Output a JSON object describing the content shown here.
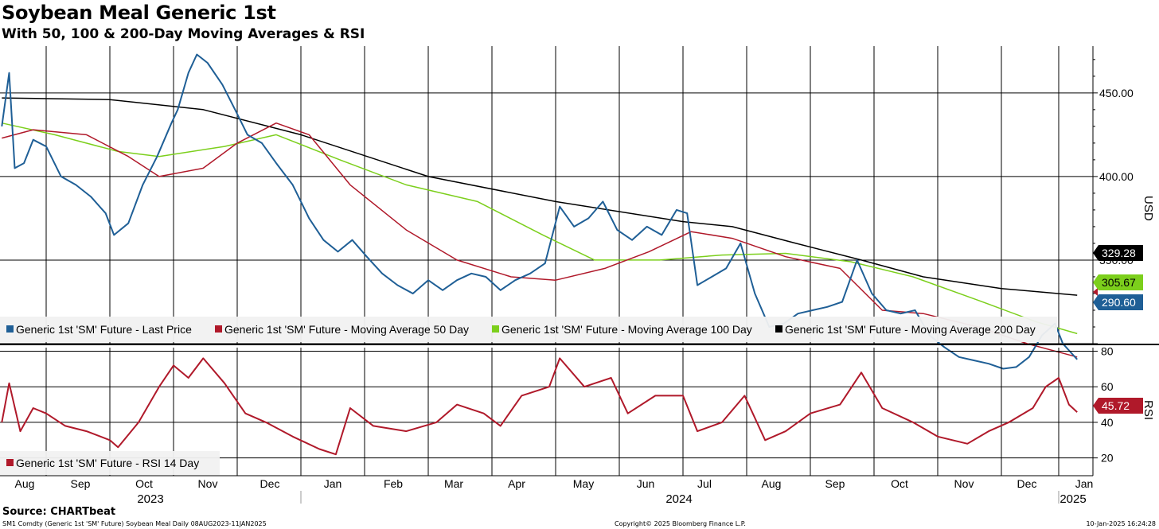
{
  "title": "Soybean Meal Generic 1st",
  "subtitle": "With 50, 100 & 200-Day Moving Averages & RSI",
  "source": "Source: CHARTbeat",
  "footer": {
    "left": "SM1 Comdty (Generic 1st 'SM' Future) Soybean Meal  Daily 08AUG2023-11JAN2025",
    "center": "Copyright© 2025 Bloomberg Finance L.P.",
    "right": "10-Jan-2025 16:24:28"
  },
  "colors": {
    "price": "#1f5f96",
    "ma50": "#b0192a",
    "ma100": "#7ccf1c",
    "ma200": "#000000",
    "rsi": "#b0192a",
    "grid": "#000000"
  },
  "chart_data": [
    {
      "type": "line",
      "ylabel": "USD",
      "ylim": [
        300,
        478
      ],
      "yticks": [
        "450.00",
        "400.00",
        "350.00"
      ],
      "x_months": [
        "Aug",
        "Sep",
        "Oct",
        "Nov",
        "Dec",
        "Jan",
        "Feb",
        "Mar",
        "Apr",
        "May",
        "Jun",
        "Jul",
        "Aug",
        "Sep",
        "Oct",
        "Nov",
        "Dec",
        "Jan"
      ],
      "x_years": [
        "2023",
        "2024",
        "2025"
      ],
      "legend_position": "bottom",
      "series": [
        {
          "name": "Generic 1st 'SM' Future - Last Price",
          "last_value": "290.60",
          "points": [
            [
              "2023-08-08",
              430
            ],
            [
              "2023-08-12",
              462
            ],
            [
              "2023-08-15",
              405
            ],
            [
              "2023-08-20",
              408
            ],
            [
              "2023-08-25",
              422
            ],
            [
              "2023-09-01",
              418
            ],
            [
              "2023-09-08",
              400
            ],
            [
              "2023-09-15",
              395
            ],
            [
              "2023-09-22",
              388
            ],
            [
              "2023-09-29",
              378
            ],
            [
              "2023-10-03",
              365
            ],
            [
              "2023-10-10",
              372
            ],
            [
              "2023-10-17",
              395
            ],
            [
              "2023-10-24",
              412
            ],
            [
              "2023-10-31",
              432
            ],
            [
              "2023-11-03",
              440
            ],
            [
              "2023-11-08",
              462
            ],
            [
              "2023-11-12",
              473
            ],
            [
              "2023-11-17",
              468
            ],
            [
              "2023-11-24",
              455
            ],
            [
              "2023-11-30",
              440
            ],
            [
              "2023-12-06",
              425
            ],
            [
              "2023-12-13",
              420
            ],
            [
              "2023-12-20",
              408
            ],
            [
              "2023-12-28",
              395
            ],
            [
              "2024-01-05",
              375
            ],
            [
              "2024-01-12",
              362
            ],
            [
              "2024-01-19",
              355
            ],
            [
              "2024-01-26",
              362
            ],
            [
              "2024-02-02",
              352
            ],
            [
              "2024-02-09",
              342
            ],
            [
              "2024-02-16",
              335
            ],
            [
              "2024-02-23",
              330
            ],
            [
              "2024-03-01",
              338
            ],
            [
              "2024-03-08",
              332
            ],
            [
              "2024-03-15",
              338
            ],
            [
              "2024-03-22",
              342
            ],
            [
              "2024-03-29",
              340
            ],
            [
              "2024-04-05",
              332
            ],
            [
              "2024-04-12",
              338
            ],
            [
              "2024-04-19",
              342
            ],
            [
              "2024-04-26",
              348
            ],
            [
              "2024-05-03",
              382
            ],
            [
              "2024-05-10",
              370
            ],
            [
              "2024-05-17",
              375
            ],
            [
              "2024-05-24",
              385
            ],
            [
              "2024-05-31",
              368
            ],
            [
              "2024-06-07",
              362
            ],
            [
              "2024-06-14",
              370
            ],
            [
              "2024-06-21",
              365
            ],
            [
              "2024-06-28",
              380
            ],
            [
              "2024-07-03",
              378
            ],
            [
              "2024-07-08",
              335
            ],
            [
              "2024-07-15",
              340
            ],
            [
              "2024-07-22",
              345
            ],
            [
              "2024-07-29",
              360
            ],
            [
              "2024-08-05",
              330
            ],
            [
              "2024-08-12",
              310
            ],
            [
              "2024-08-19",
              312
            ],
            [
              "2024-08-26",
              318
            ],
            [
              "2024-09-02",
              320
            ],
            [
              "2024-09-09",
              322
            ],
            [
              "2024-09-16",
              325
            ],
            [
              "2024-09-23",
              350
            ],
            [
              "2024-09-30",
              330
            ],
            [
              "2024-10-07",
              320
            ],
            [
              "2024-10-14",
              318
            ],
            [
              "2024-10-21",
              320
            ],
            [
              "2024-10-28",
              305
            ],
            [
              "2024-11-04",
              298
            ],
            [
              "2024-11-11",
              292
            ],
            [
              "2024-11-18",
              290
            ],
            [
              "2024-11-25",
              288
            ],
            [
              "2024-12-02",
              285
            ],
            [
              "2024-12-09",
              286
            ],
            [
              "2024-12-16",
              292
            ],
            [
              "2024-12-23",
              305
            ],
            [
              "2024-12-30",
              312
            ],
            [
              "2025-01-03",
              300
            ],
            [
              "2025-01-10",
              290.6
            ]
          ]
        },
        {
          "name": "Generic 1st 'SM' Future - Moving Average 50 Day",
          "last_value": "",
          "points": [
            [
              "2023-08-08",
              423
            ],
            [
              "2023-08-25",
              428
            ],
            [
              "2023-09-20",
              425
            ],
            [
              "2023-10-10",
              412
            ],
            [
              "2023-10-25",
              400
            ],
            [
              "2023-11-15",
              405
            ],
            [
              "2023-12-01",
              420
            ],
            [
              "2023-12-20",
              432
            ],
            [
              "2024-01-05",
              425
            ],
            [
              "2024-01-25",
              395
            ],
            [
              "2024-02-20",
              368
            ],
            [
              "2024-03-15",
              350
            ],
            [
              "2024-04-10",
              340
            ],
            [
              "2024-05-01",
              338
            ],
            [
              "2024-05-25",
              345
            ],
            [
              "2024-06-15",
              355
            ],
            [
              "2024-07-05",
              367
            ],
            [
              "2024-07-25",
              363
            ],
            [
              "2024-08-20",
              352
            ],
            [
              "2024-09-15",
              345
            ],
            [
              "2024-10-05",
              320
            ],
            [
              "2024-10-25",
              318
            ],
            [
              "2024-11-20",
              310
            ],
            [
              "2024-12-15",
              300
            ],
            [
              "2025-01-10",
              292
            ]
          ]
        },
        {
          "name": "Generic 1st 'SM' Future - Moving Average 100 Day",
          "last_value": "305.67",
          "points": [
            [
              "2023-08-08",
              432
            ],
            [
              "2023-09-05",
              425
            ],
            [
              "2023-10-05",
              415
            ],
            [
              "2023-10-25",
              412
            ],
            [
              "2023-11-25",
              418
            ],
            [
              "2023-12-20",
              425
            ],
            [
              "2024-01-20",
              410
            ],
            [
              "2024-02-20",
              395
            ],
            [
              "2024-03-25",
              385
            ],
            [
              "2024-04-25",
              365
            ],
            [
              "2024-05-20",
              350
            ],
            [
              "2024-06-20",
              350
            ],
            [
              "2024-07-20",
              353
            ],
            [
              "2024-08-20",
              354
            ],
            [
              "2024-09-20",
              349
            ],
            [
              "2024-10-20",
              340
            ],
            [
              "2024-11-20",
              326
            ],
            [
              "2024-12-20",
              313
            ],
            [
              "2025-01-10",
              306
            ]
          ]
        },
        {
          "name": "Generic 1st 'SM' Future - Moving Average 200 Day",
          "last_value": "329.28",
          "points": [
            [
              "2023-08-08",
              447
            ],
            [
              "2023-10-01",
              446
            ],
            [
              "2023-11-15",
              440
            ],
            [
              "2024-01-01",
              425
            ],
            [
              "2024-03-01",
              400
            ],
            [
              "2024-05-01",
              385
            ],
            [
              "2024-07-01",
              373
            ],
            [
              "2024-07-25",
              370
            ],
            [
              "2024-08-25",
              360
            ],
            [
              "2024-09-25",
              350
            ],
            [
              "2024-10-25",
              340
            ],
            [
              "2024-12-01",
              333
            ],
            [
              "2025-01-10",
              329
            ]
          ]
        }
      ]
    },
    {
      "type": "line",
      "ylabel": "RSI",
      "ylim": [
        10,
        82
      ],
      "yticks": [
        "80",
        "60",
        "40",
        "20"
      ],
      "legend_position": "bottom-left",
      "series": [
        {
          "name": "Generic 1st 'SM' Future - RSI 14 Day",
          "last_value": "45.72",
          "points": [
            [
              "2023-08-08",
              40
            ],
            [
              "2023-08-12",
              62
            ],
            [
              "2023-08-18",
              35
            ],
            [
              "2023-08-25",
              48
            ],
            [
              "2023-09-01",
              45
            ],
            [
              "2023-09-10",
              38
            ],
            [
              "2023-09-20",
              35
            ],
            [
              "2023-10-01",
              30
            ],
            [
              "2023-10-05",
              26
            ],
            [
              "2023-10-15",
              40
            ],
            [
              "2023-10-25",
              60
            ],
            [
              "2023-11-01",
              72
            ],
            [
              "2023-11-08",
              65
            ],
            [
              "2023-11-15",
              76
            ],
            [
              "2023-11-25",
              62
            ],
            [
              "2023-12-05",
              45
            ],
            [
              "2023-12-15",
              40
            ],
            [
              "2023-12-28",
              32
            ],
            [
              "2024-01-10",
              25
            ],
            [
              "2024-01-18",
              22
            ],
            [
              "2024-01-25",
              48
            ],
            [
              "2024-02-05",
              38
            ],
            [
              "2024-02-20",
              35
            ],
            [
              "2024-03-05",
              40
            ],
            [
              "2024-03-15",
              50
            ],
            [
              "2024-03-28",
              45
            ],
            [
              "2024-04-05",
              38
            ],
            [
              "2024-04-15",
              55
            ],
            [
              "2024-04-28",
              60
            ],
            [
              "2024-05-03",
              76
            ],
            [
              "2024-05-15",
              60
            ],
            [
              "2024-05-28",
              65
            ],
            [
              "2024-06-05",
              45
            ],
            [
              "2024-06-18",
              55
            ],
            [
              "2024-07-01",
              55
            ],
            [
              "2024-07-08",
              35
            ],
            [
              "2024-07-20",
              40
            ],
            [
              "2024-07-31",
              55
            ],
            [
              "2024-08-10",
              30
            ],
            [
              "2024-08-20",
              35
            ],
            [
              "2024-09-01",
              45
            ],
            [
              "2024-09-15",
              50
            ],
            [
              "2024-09-25",
              68
            ],
            [
              "2024-10-05",
              48
            ],
            [
              "2024-10-20",
              40
            ],
            [
              "2024-11-01",
              32
            ],
            [
              "2024-11-15",
              28
            ],
            [
              "2024-11-25",
              35
            ],
            [
              "2024-12-05",
              40
            ],
            [
              "2024-12-18",
              48
            ],
            [
              "2024-12-25",
              60
            ],
            [
              "2025-01-01",
              65
            ],
            [
              "2025-01-06",
              50
            ],
            [
              "2025-01-10",
              45.72
            ]
          ]
        }
      ]
    }
  ]
}
